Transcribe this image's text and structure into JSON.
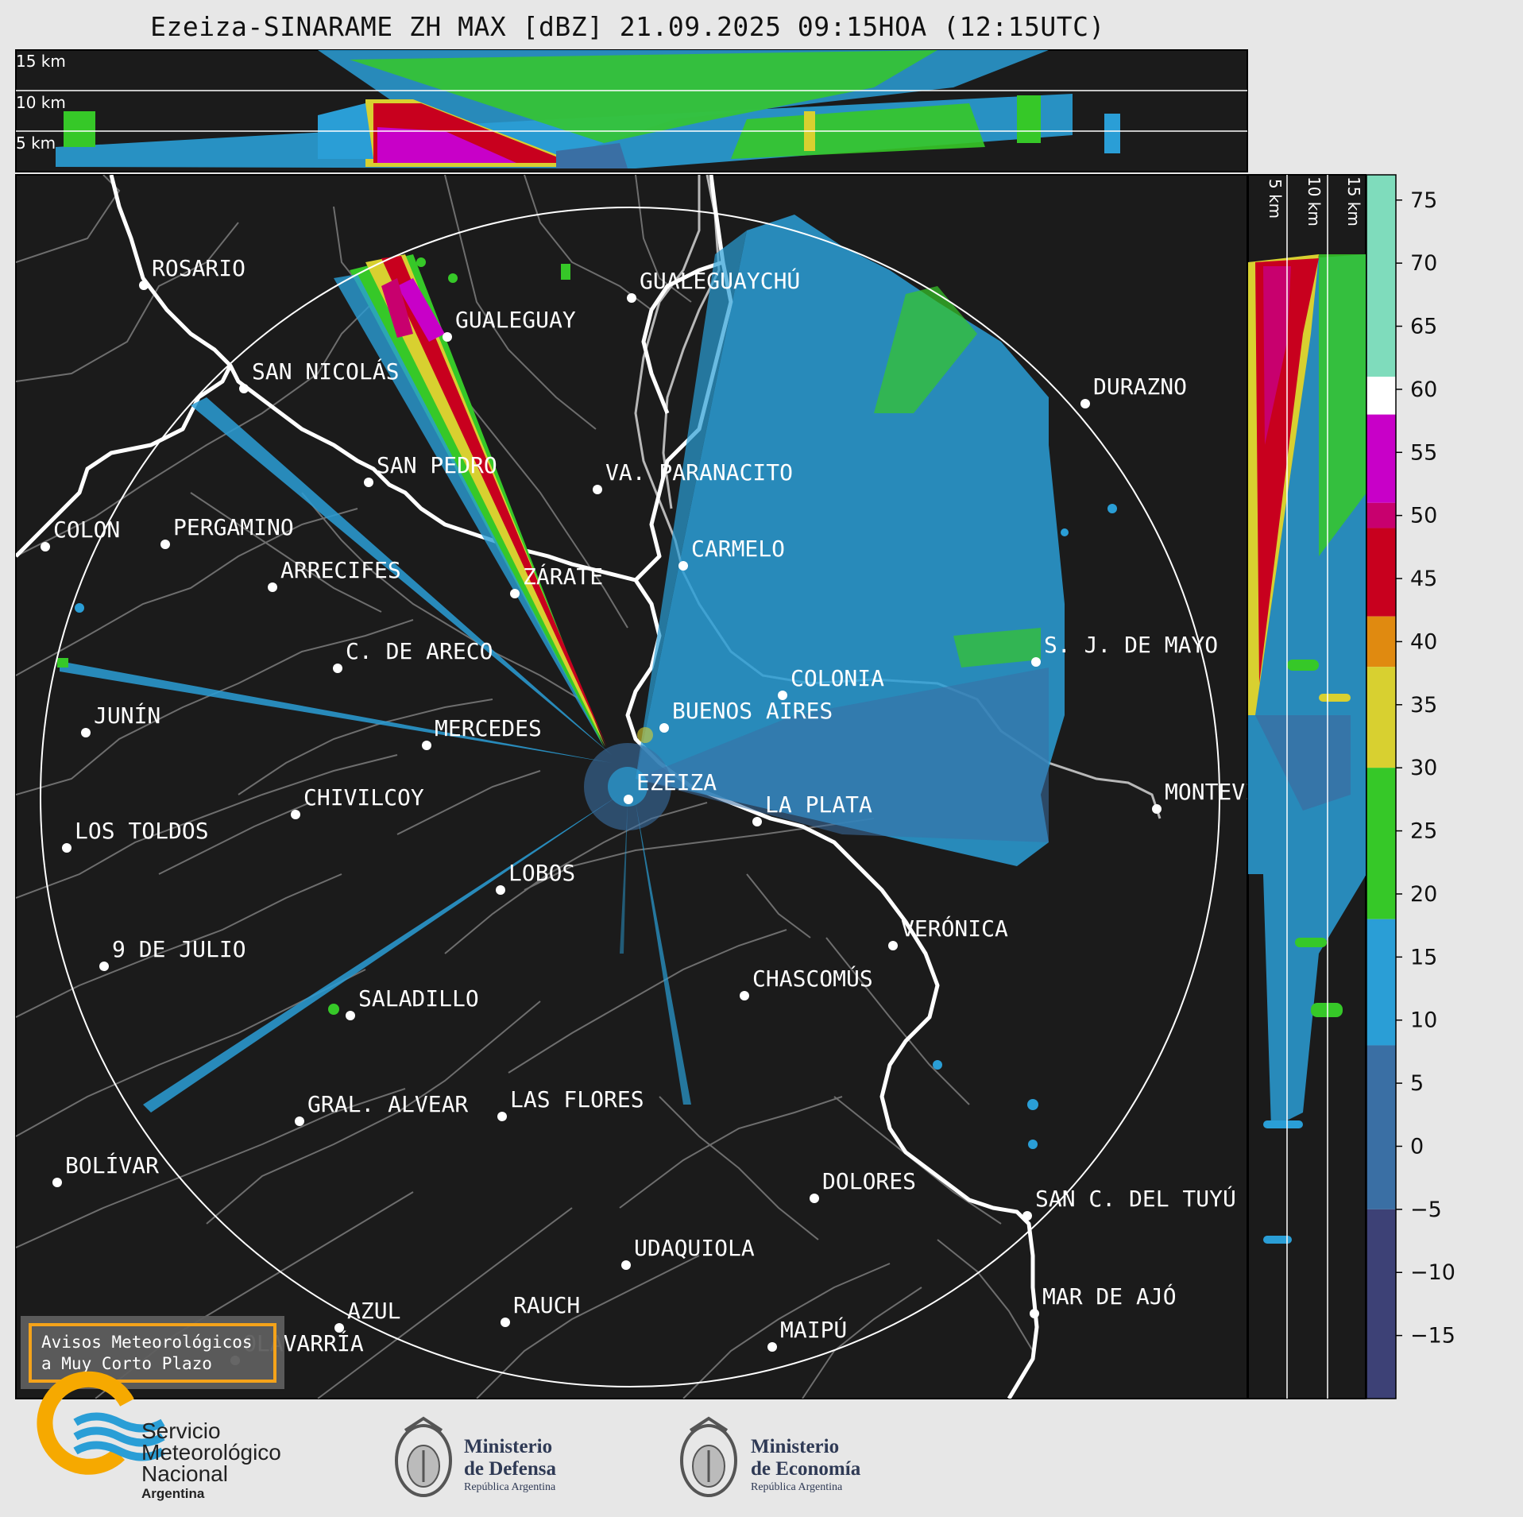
{
  "title": "Ezeiza-SINARAME ZH MAX [dBZ] 21.09.2025 09:15HOA (12:15UTC)",
  "top_panel": {
    "km_labels": [
      "15 km",
      "10 km",
      "5 km"
    ]
  },
  "side_panel": {
    "km_labels": [
      "5 km",
      "10 km",
      "15 km"
    ]
  },
  "colorbar": {
    "unit": "dBZ",
    "ticks": [
      "75",
      "70",
      "65",
      "60",
      "55",
      "50",
      "45",
      "40",
      "35",
      "30",
      "25",
      "20",
      "15",
      "10",
      "5",
      "0",
      "−5",
      "−10",
      "−15"
    ],
    "tick_values": [
      75,
      70,
      65,
      60,
      55,
      50,
      45,
      40,
      35,
      30,
      25,
      20,
      15,
      10,
      5,
      0,
      -5,
      -10,
      -15
    ],
    "range": [
      -20,
      77
    ],
    "stops": [
      {
        "from": 61,
        "to": 77,
        "color": "#7fdcbc"
      },
      {
        "from": 58,
        "to": 61,
        "color": "#ffffff"
      },
      {
        "from": 51,
        "to": 58,
        "color": "#c800c8"
      },
      {
        "from": 49,
        "to": 51,
        "color": "#c8006e"
      },
      {
        "from": 42,
        "to": 49,
        "color": "#c8001e"
      },
      {
        "from": 38,
        "to": 42,
        "color": "#e08a10"
      },
      {
        "from": 30,
        "to": 38,
        "color": "#d8d030"
      },
      {
        "from": 18,
        "to": 30,
        "color": "#36c828"
      },
      {
        "from": 8,
        "to": 18,
        "color": "#2a9ed6"
      },
      {
        "from": -5,
        "to": 8,
        "color": "#3a6fa4"
      },
      {
        "from": -20,
        "to": -5,
        "color": "#3d4176"
      }
    ]
  },
  "cities": [
    {
      "name": "ROSARIO"
    },
    {
      "name": "GUALEGUAYCHÚ"
    },
    {
      "name": "GUALEGUAY"
    },
    {
      "name": "SAN NICOLÁS"
    },
    {
      "name": "DURAZNO"
    },
    {
      "name": "SAN PEDRO"
    },
    {
      "name": "VA. PARANACITO"
    },
    {
      "name": "COLON"
    },
    {
      "name": "PERGAMINO"
    },
    {
      "name": "CARMELO"
    },
    {
      "name": "ARRECIFES"
    },
    {
      "name": "ZÁRATE"
    },
    {
      "name": "S. J. DE MAYO"
    },
    {
      "name": "C. DE ARECO"
    },
    {
      "name": "COLONIA"
    },
    {
      "name": "JUNÍN"
    },
    {
      "name": "BUENOS AIRES"
    },
    {
      "name": "MERCEDES"
    },
    {
      "name": "EZEIZA"
    },
    {
      "name": "MONTEVIDEO"
    },
    {
      "name": "CHIVILCOY"
    },
    {
      "name": "LA PLATA"
    },
    {
      "name": "LOS TOLDOS"
    },
    {
      "name": "LOBOS"
    },
    {
      "name": "VERÓNICA"
    },
    {
      "name": "9 DE JULIO"
    },
    {
      "name": "CHASCOMÚS"
    },
    {
      "name": "SALADILLO"
    },
    {
      "name": "GRAL. ALVEAR"
    },
    {
      "name": "LAS FLORES"
    },
    {
      "name": "BOLÍVAR"
    },
    {
      "name": "DOLORES"
    },
    {
      "name": "SAN C. DEL TUYÚ"
    },
    {
      "name": "UDAQUIOLA"
    },
    {
      "name": "MAR DE AJÓ"
    },
    {
      "name": "AZUL"
    },
    {
      "name": "RAUCH"
    },
    {
      "name": "OLAVARRÍA"
    },
    {
      "name": "MAIPÚ"
    }
  ],
  "notice": {
    "line1": "Avisos Meteorológicos",
    "line2": "a Muy Corto Plazo",
    "border_color": "#f5a31a"
  },
  "logos": {
    "smn": {
      "line1": "Servicio",
      "line2": "Meteorológico",
      "line3": "Nacional",
      "line4": "Argentina"
    },
    "defensa": {
      "line1": "Ministerio",
      "line2": "de Defensa",
      "line3": "República Argentina"
    },
    "economia": {
      "line1": "Ministerio",
      "line2": "de Economía",
      "line3": "República Argentina"
    }
  }
}
